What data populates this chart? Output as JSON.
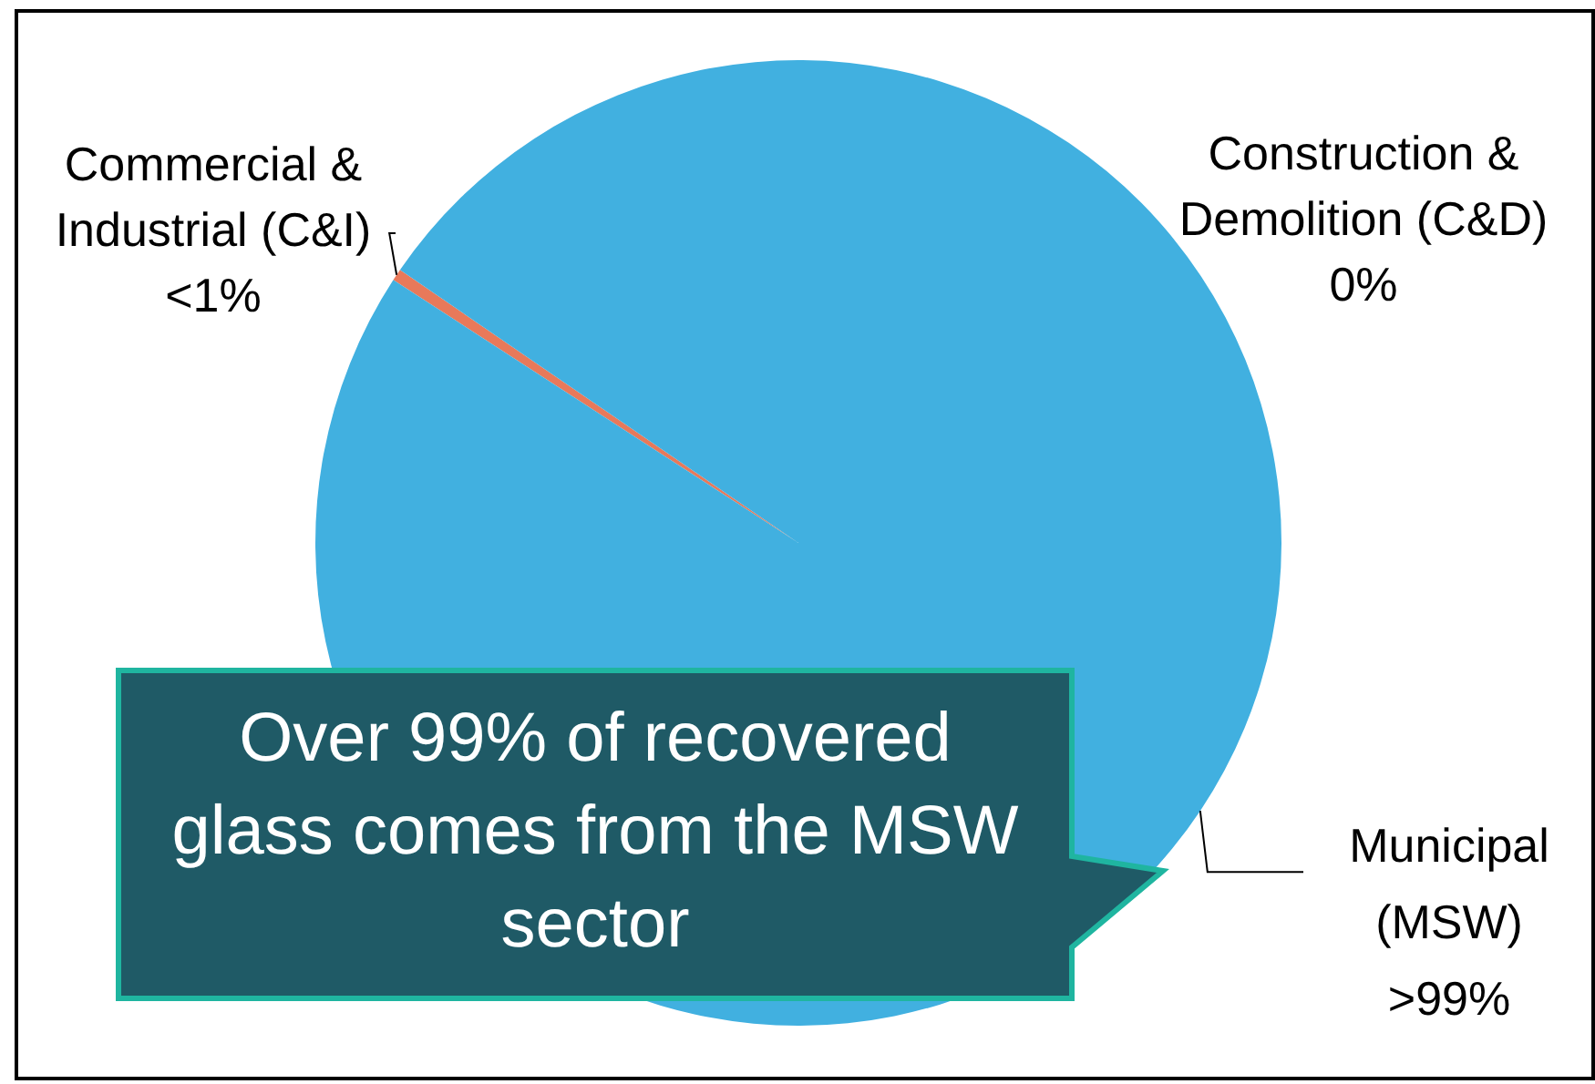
{
  "chart_data": {
    "type": "pie",
    "categories": [
      "Commercial & Industrial (C&I)",
      "Construction & Demolition (C&D)",
      "Municipal (MSW)"
    ],
    "values": [
      0.4,
      0,
      99.6
    ],
    "value_labels": [
      "<1%",
      "0%",
      ">99%"
    ],
    "colors": [
      "#e8795a",
      "#a5a5a5",
      "#41b0e0"
    ],
    "legend": false,
    "annotations": [
      "Over 99% of recovered glass comes from the MSW sector"
    ]
  }
}
